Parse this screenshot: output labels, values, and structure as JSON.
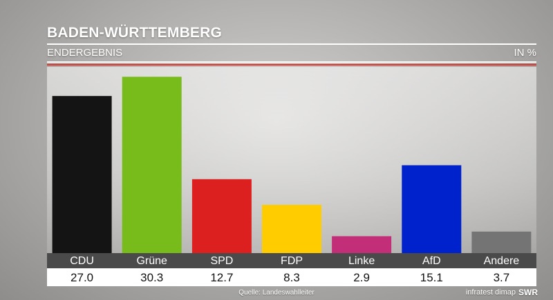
{
  "header": {
    "title": "BADEN-WÜRTTEMBERG",
    "subtitle": "ENDERGEBNIS",
    "unit": "IN %"
  },
  "footer": {
    "source": "Quelle: Landeswahlleiter",
    "credit": "infratest dimap",
    "brand": "SWR"
  },
  "chart_data": {
    "type": "bar",
    "title": "BADEN-WÜRTTEMBERG",
    "subtitle": "ENDERGEBNIS",
    "ylabel": "IN %",
    "ylim": [
      0,
      32
    ],
    "grid": false,
    "legend": "none",
    "categories": [
      "CDU",
      "Grüne",
      "SPD",
      "FDP",
      "Linke",
      "AfD",
      "Andere"
    ],
    "values": [
      27.0,
      30.3,
      12.7,
      8.3,
      2.9,
      15.1,
      3.7
    ],
    "value_labels": [
      "27.0",
      "30.3",
      "12.7",
      "8.3",
      "2.9",
      "15.1",
      "3.7"
    ],
    "colors": [
      "#141414",
      "#78bc1c",
      "#dc2020",
      "#ffcc00",
      "#c22f78",
      "#0022cc",
      "#747474"
    ]
  }
}
